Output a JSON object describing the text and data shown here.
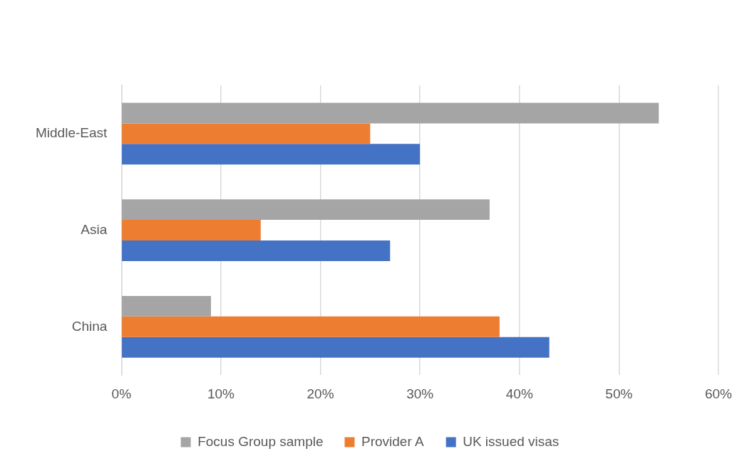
{
  "chart_data": {
    "type": "bar",
    "orientation": "horizontal",
    "categories": [
      "Middle-East",
      "Asia",
      "China"
    ],
    "series": [
      {
        "name": "Focus Group sample",
        "color": "#a5a5a5",
        "values": [
          54,
          37,
          9
        ]
      },
      {
        "name": "Provider A",
        "color": "#ed7d31",
        "values": [
          25,
          14,
          38
        ]
      },
      {
        "name": "UK issued visas",
        "color": "#4472c4",
        "values": [
          30,
          27,
          43
        ]
      }
    ],
    "xlim": [
      0,
      60
    ],
    "xticks": [
      {
        "value": 0,
        "label": "0%"
      },
      {
        "value": 10,
        "label": "10%"
      },
      {
        "value": 20,
        "label": "20%"
      },
      {
        "value": 30,
        "label": "30%"
      },
      {
        "value": 40,
        "label": "40%"
      },
      {
        "value": 50,
        "label": "50%"
      },
      {
        "value": 60,
        "label": "60%"
      }
    ],
    "grid": "x",
    "legend": "bottom"
  }
}
